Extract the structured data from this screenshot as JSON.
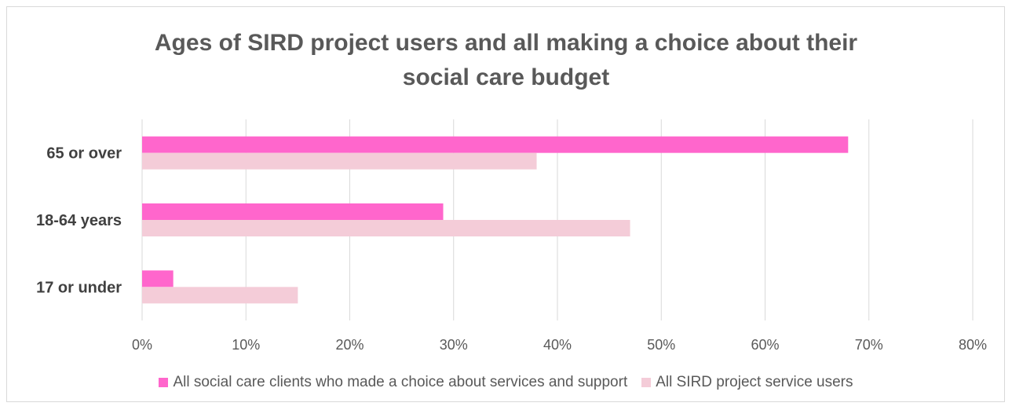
{
  "chart_data": {
    "type": "bar",
    "orientation": "horizontal",
    "title_lines": [
      "Ages of SIRD project users and all making a choice about their",
      "social care budget"
    ],
    "categories": [
      "65 or over",
      "18-64 years",
      "17 or under"
    ],
    "series": [
      {
        "name": "All social care clients who made a choice about services and support",
        "color": "#ff66cc",
        "values": [
          68,
          29,
          3
        ]
      },
      {
        "name": "All SIRD project service users",
        "color": "#f4ccd8",
        "values": [
          38,
          47,
          15
        ]
      }
    ],
    "xlim": [
      0,
      80
    ],
    "x_ticks": [
      "0%",
      "10%",
      "20%",
      "30%",
      "40%",
      "50%",
      "60%",
      "70%",
      "80%"
    ],
    "grid": true,
    "legend_position": "bottom"
  }
}
